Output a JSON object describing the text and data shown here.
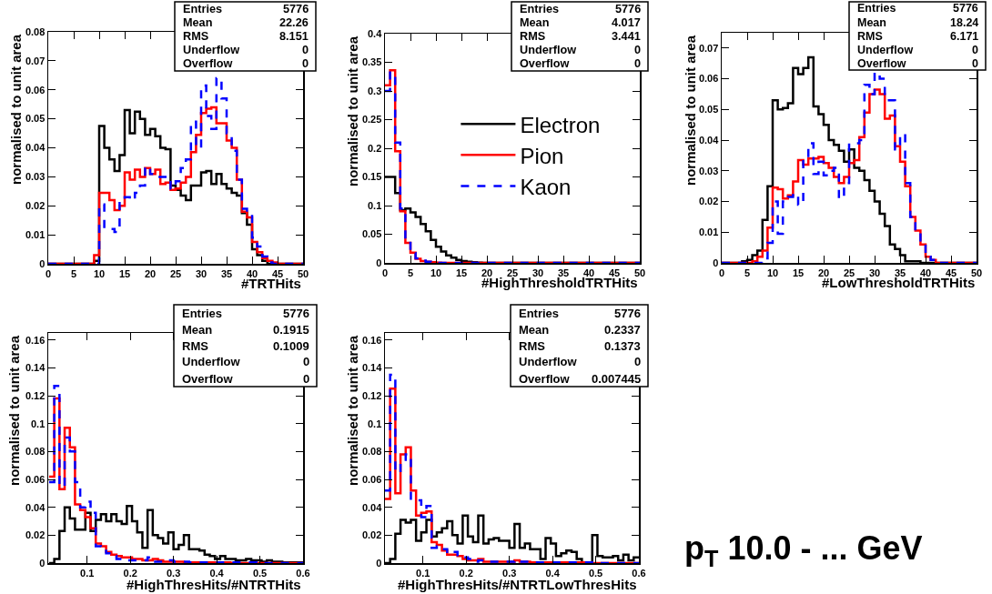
{
  "chart_data": [
    {
      "type": "histogram",
      "xlabel": "#TRTHits",
      "ylabel": "normalised to unit area",
      "xlim": [
        0,
        50
      ],
      "ylim": [
        0,
        0.08
      ],
      "xticks": [
        0,
        5,
        10,
        15,
        20,
        25,
        30,
        35,
        40,
        45,
        50
      ],
      "yticks": [
        0,
        0.01,
        0.02,
        0.03,
        0.04,
        0.05,
        0.06,
        0.07,
        0.08
      ],
      "annotations": [
        "Entries 5776",
        "Mean 22.26",
        "RMS 8.151",
        "Underflow 0",
        "Overflow 0"
      ],
      "bins": [
        0,
        1,
        2,
        3,
        4,
        5,
        6,
        7,
        8,
        9,
        10,
        11,
        12,
        13,
        14,
        15,
        16,
        17,
        18,
        19,
        20,
        21,
        22,
        23,
        24,
        25,
        26,
        27,
        28,
        29,
        30,
        31,
        32,
        33,
        34,
        35,
        36,
        37,
        38,
        39,
        40,
        41,
        42,
        43,
        44,
        45,
        46,
        47,
        48,
        49,
        50
      ],
      "series": [
        {
          "color": "#000000",
          "values": [
            0,
            0,
            0,
            0,
            0,
            0,
            0,
            0,
            0,
            0.001,
            0.0475,
            0.04,
            0.036,
            0.032,
            0.0375,
            0.053,
            0.045,
            0.0525,
            0.05,
            0.0445,
            0.0465,
            0.044,
            0.04,
            0.0395,
            0.027,
            0.0255,
            0.0235,
            0.022,
            0.027,
            0.027,
            0.0315,
            0.032,
            0.0275,
            0.031,
            0.0275,
            0.026,
            0.0245,
            0.0235,
            0.0175,
            0.0135,
            0.005,
            0.003,
            0.001,
            0,
            0,
            0,
            0,
            0,
            0,
            0
          ]
        },
        {
          "color": "#ff0000",
          "values": [
            0,
            0,
            0,
            0,
            0,
            0,
            0,
            0,
            0,
            0.003,
            0.0245,
            0.0245,
            0.022,
            0.0185,
            0.02,
            0.0315,
            0.029,
            0.0325,
            0.03,
            0.033,
            0.031,
            0.0325,
            0.0275,
            0.028,
            0.0255,
            0.026,
            0.028,
            0.03,
            0.0385,
            0.0445,
            0.052,
            0.0535,
            0.054,
            0.0485,
            0.0485,
            0.0425,
            0.04,
            0.029,
            0.018,
            0.016,
            0.0075,
            0.004,
            0.002,
            0.001,
            0.0005,
            0,
            0,
            0,
            0,
            0
          ]
        },
        {
          "color": "#0000ff",
          "line_style": "dashed",
          "values": [
            0,
            0,
            0,
            0,
            0,
            0,
            0,
            0,
            0,
            0,
            0.0205,
            0.012,
            0.012,
            0.011,
            0.0215,
            0.023,
            0.022,
            0.0245,
            0.027,
            0.0335,
            0.031,
            0.03,
            0.03,
            0.0295,
            0.026,
            0.0285,
            0.033,
            0.036,
            0.049,
            0.04,
            0.0615,
            0.051,
            0.0465,
            0.064,
            0.057,
            0.045,
            0.039,
            0.029,
            0.019,
            0.017,
            0.009,
            0.006,
            0.0025,
            0.0005,
            0,
            0,
            0,
            0,
            0,
            0
          ]
        }
      ]
    },
    {
      "type": "histogram",
      "xlabel": "#HighThresholdTRTHits",
      "ylabel": "normalised to unit area",
      "xlim": [
        0,
        50
      ],
      "ylim": [
        0,
        0.4
      ],
      "xticks": [
        0,
        5,
        10,
        15,
        20,
        25,
        30,
        35,
        40,
        45,
        50
      ],
      "yticks": [
        0,
        0.05,
        0.1,
        0.15,
        0.2,
        0.25,
        0.3,
        0.35,
        0.4
      ],
      "legend": "right",
      "annotations": [
        "Entries 5776",
        "Mean 4.017",
        "RMS 3.441",
        "Underflow 0",
        "Overflow 0"
      ],
      "bins": [
        0,
        1,
        2,
        3,
        4,
        5,
        6,
        7,
        8,
        9,
        10,
        11,
        12,
        13,
        14,
        15,
        16,
        17,
        18,
        19,
        20,
        21,
        22,
        23,
        24,
        25,
        26,
        27,
        28,
        29,
        30,
        31,
        32,
        33,
        34,
        35,
        36,
        37,
        38,
        39,
        40,
        41,
        42,
        43,
        44,
        45,
        46,
        47,
        48,
        49,
        50
      ],
      "series": [
        {
          "name": "Electron",
          "color": "#000000",
          "values": [
            0.15,
            0.15,
            0.122,
            0.092,
            0.095,
            0.088,
            0.08,
            0.068,
            0.055,
            0.04,
            0.028,
            0.02,
            0.013,
            0.009,
            0.005,
            0.003,
            0.002,
            0.001,
            0.0005,
            0,
            0,
            0,
            0,
            0,
            0,
            0,
            0,
            0,
            0,
            0,
            0,
            0,
            0,
            0,
            0,
            0,
            0,
            0,
            0,
            0,
            0,
            0,
            0,
            0,
            0,
            0,
            0,
            0,
            0,
            0
          ]
        },
        {
          "name": "Pion",
          "color": "#ff0000",
          "values": [
            0.31,
            0.336,
            0.195,
            0.09,
            0.035,
            0.018,
            0.007,
            0.003,
            0.002,
            0.001,
            0.0005,
            0,
            0,
            0,
            0,
            0,
            0,
            0,
            0,
            0,
            0,
            0,
            0,
            0,
            0,
            0,
            0,
            0,
            0,
            0,
            0,
            0,
            0,
            0,
            0,
            0,
            0,
            0,
            0,
            0,
            0,
            0,
            0,
            0,
            0,
            0,
            0,
            0,
            0,
            0
          ]
        },
        {
          "name": "Kaon",
          "color": "#0000ff",
          "line_style": "dashed",
          "values": [
            0.3,
            0.332,
            0.21,
            0.095,
            0.035,
            0.017,
            0.008,
            0.004,
            0.002,
            0.001,
            0,
            0,
            0,
            0,
            0,
            0,
            0,
            0,
            0,
            0,
            0,
            0,
            0,
            0,
            0,
            0,
            0,
            0,
            0,
            0,
            0,
            0,
            0,
            0,
            0,
            0,
            0,
            0,
            0,
            0,
            0,
            0,
            0,
            0,
            0,
            0,
            0,
            0,
            0,
            0
          ]
        }
      ]
    },
    {
      "type": "histogram",
      "xlabel": "#LowThresholdTRTHits",
      "ylabel": "normalised to unit area",
      "xlim": [
        0,
        50
      ],
      "ylim": [
        0,
        0.075
      ],
      "xticks": [
        0,
        5,
        10,
        15,
        20,
        25,
        30,
        35,
        40,
        45,
        50
      ],
      "yticks": [
        0,
        0.01,
        0.02,
        0.03,
        0.04,
        0.05,
        0.06,
        0.07
      ],
      "annotations": [
        "Entries 5776",
        "Mean 18.24",
        "RMS 6.171",
        "Underflow 0",
        "Overflow 0"
      ],
      "bins": [
        0,
        1,
        2,
        3,
        4,
        5,
        6,
        7,
        8,
        9,
        10,
        11,
        12,
        13,
        14,
        15,
        16,
        17,
        18,
        19,
        20,
        21,
        22,
        23,
        24,
        25,
        26,
        27,
        28,
        29,
        30,
        31,
        32,
        33,
        34,
        35,
        36,
        37,
        38,
        39,
        40,
        41,
        42,
        43,
        44,
        45,
        46,
        47,
        48,
        49,
        50
      ],
      "series": [
        {
          "color": "#000000",
          "values": [
            0,
            0,
            0,
            0,
            0.0005,
            0.001,
            0.0025,
            0.004,
            0.014,
            0.025,
            0.053,
            0.05,
            0.0505,
            0.052,
            0.0635,
            0.0615,
            0.0635,
            0.067,
            0.051,
            0.0485,
            0.045,
            0.04,
            0.0385,
            0.0365,
            0.033,
            0.037,
            0.031,
            0.03,
            0.027,
            0.0235,
            0.02,
            0.016,
            0.012,
            0.006,
            0.0045,
            0.0025,
            0.0005,
            0.0005,
            0.0005,
            0,
            0,
            0,
            0,
            0,
            0,
            0,
            0,
            0,
            0,
            0
          ]
        },
        {
          "color": "#ff0000",
          "values": [
            0,
            0,
            0,
            0,
            0,
            0,
            0.0005,
            0.002,
            0.004,
            0.0115,
            0.0245,
            0.024,
            0.021,
            0.022,
            0.0265,
            0.0335,
            0.032,
            0.034,
            0.034,
            0.0345,
            0.0325,
            0.031,
            0.028,
            0.026,
            0.028,
            0.0325,
            0.0335,
            0.041,
            0.049,
            0.055,
            0.0565,
            0.055,
            0.047,
            0.048,
            0.038,
            0.033,
            0.025,
            0.015,
            0.0105,
            0.006,
            0.002,
            0.001,
            0,
            0,
            0,
            0,
            0,
            0,
            0,
            0
          ]
        },
        {
          "color": "#0000ff",
          "line_style": "dashed",
          "values": [
            0,
            0,
            0,
            0,
            0,
            0,
            0,
            0,
            0.0015,
            0.0065,
            0.02,
            0.0095,
            0.02,
            0.0215,
            0.0225,
            0.019,
            0.034,
            0.039,
            0.029,
            0.033,
            0.0285,
            0.03,
            0.031,
            0.021,
            0.026,
            0.039,
            0.039,
            0.04,
            0.058,
            0.055,
            0.062,
            0.06,
            0.053,
            0.053,
            0.037,
            0.042,
            0.026,
            0.015,
            0.01,
            0.0065,
            0.002,
            0.001,
            0,
            0,
            0,
            0,
            0,
            0,
            0,
            0
          ]
        }
      ]
    },
    {
      "type": "histogram",
      "xlabel": "#HighThresHits/#NTRTHits",
      "ylabel": "normalised to unit area",
      "xlim": [
        0.01,
        0.6
      ],
      "ylim": [
        0,
        0.165
      ],
      "xticks": [
        0.1,
        0.2,
        0.3,
        0.4,
        0.5,
        0.6
      ],
      "yticks": [
        0,
        0.02,
        0.04,
        0.06,
        0.08,
        0.1,
        0.12,
        0.14,
        0.16
      ],
      "annotations": [
        "Entries 5776",
        "Mean 0.1915",
        "RMS 0.1009",
        "Underflow 0",
        "Overflow 0"
      ],
      "bins": [
        0.012,
        0.024,
        0.036,
        0.048,
        0.06,
        0.072,
        0.084,
        0.096,
        0.108,
        0.12,
        0.132,
        0.144,
        0.156,
        0.168,
        0.18,
        0.192,
        0.204,
        0.216,
        0.228,
        0.24,
        0.252,
        0.264,
        0.276,
        0.288,
        0.3,
        0.312,
        0.324,
        0.336,
        0.348,
        0.36,
        0.372,
        0.384,
        0.396,
        0.408,
        0.42,
        0.432,
        0.444,
        0.456,
        0.468,
        0.48,
        0.492,
        0.504,
        0.516,
        0.528,
        0.54,
        0.552,
        0.564,
        0.576,
        0.588,
        0.6
      ],
      "series": [
        {
          "color": "#000000",
          "values": [
            0,
            0.003,
            0.023,
            0.04,
            0.032,
            0.024,
            0.024,
            0.036,
            0.023,
            0.031,
            0.035,
            0.03,
            0.035,
            0.03,
            0.028,
            0.041,
            0.03,
            0.022,
            0.011,
            0.038,
            0.02,
            0.018,
            0.014,
            0.022,
            0.01,
            0.013,
            0.02,
            0.01,
            0.01,
            0.009,
            0.006,
            0.005,
            0.003,
            0.005,
            0.003,
            0.003,
            0.002,
            0.002,
            0.003,
            0.002,
            0.002,
            0.001,
            0.002,
            0.001,
            0.001,
            0.0005,
            0.0005,
            0.0005,
            0.0005
          ]
        },
        {
          "color": "#ff0000",
          "values": [
            0.062,
            0.118,
            0.053,
            0.097,
            0.083,
            0.042,
            0.038,
            0.033,
            0.025,
            0.014,
            0.012,
            0.008,
            0.006,
            0.005,
            0.004,
            0.004,
            0.003,
            0.003,
            0.002,
            0.002,
            0.003,
            0.002,
            0.001,
            0.001,
            0.001,
            0.001,
            0.0005,
            0.0005,
            0.0005,
            0.0005,
            0.0005,
            0.0005,
            0.0005,
            0.0005,
            0.0005,
            0,
            0,
            0,
            0,
            0,
            0,
            0,
            0,
            0,
            0,
            0,
            0,
            0,
            0
          ]
        },
        {
          "color": "#0000ff",
          "line_style": "dashed",
          "values": [
            0.058,
            0.127,
            0.055,
            0.09,
            0.08,
            0.058,
            0.04,
            0.044,
            0.036,
            0.012,
            0.01,
            0.007,
            0.005,
            0.003,
            0.003,
            0.002,
            0.002,
            0.002,
            0.002,
            0.004,
            0.001,
            0.001,
            0.001,
            0.002,
            0.001,
            0.001,
            0.001,
            0.0005,
            0.0005,
            0.0005,
            0.0005,
            0.0005,
            0.0005,
            0.0005,
            0.0005,
            0.0005,
            0.0005,
            0.0005,
            0.0005,
            0.0005,
            0,
            0,
            0,
            0,
            0,
            0,
            0,
            0,
            0
          ]
        }
      ]
    },
    {
      "type": "histogram",
      "xlabel": "#HighThresHits/#NTRTLowThresHits",
      "ylabel": "normalised to unit area",
      "xlim": [
        0.012,
        0.6
      ],
      "ylim": [
        0,
        0.165
      ],
      "xticks": [
        0.1,
        0.2,
        0.3,
        0.4,
        0.5,
        0.6
      ],
      "yticks": [
        0,
        0.02,
        0.04,
        0.06,
        0.08,
        0.1,
        0.12,
        0.14,
        0.16
      ],
      "annotations": [
        "Entries 5776",
        "Mean 0.2337",
        "RMS 0.1373",
        "Underflow 0",
        "Overflow 0.007445"
      ],
      "bins": [
        0.012,
        0.024,
        0.036,
        0.048,
        0.06,
        0.072,
        0.084,
        0.096,
        0.108,
        0.12,
        0.132,
        0.144,
        0.156,
        0.168,
        0.18,
        0.192,
        0.204,
        0.216,
        0.228,
        0.24,
        0.252,
        0.264,
        0.276,
        0.288,
        0.3,
        0.312,
        0.324,
        0.336,
        0.348,
        0.36,
        0.372,
        0.384,
        0.396,
        0.408,
        0.42,
        0.432,
        0.444,
        0.456,
        0.468,
        0.48,
        0.492,
        0.504,
        0.516,
        0.528,
        0.54,
        0.552,
        0.564,
        0.576,
        0.588,
        0.6
      ],
      "series": [
        {
          "color": "#000000",
          "values": [
            0,
            0.003,
            0.021,
            0.031,
            0.029,
            0.031,
            0.016,
            0.022,
            0.031,
            0.019,
            0.022,
            0.025,
            0.03,
            0.02,
            0.014,
            0.034,
            0.019,
            0.015,
            0.034,
            0.014,
            0.017,
            0.018,
            0.016,
            0.016,
            0.011,
            0.028,
            0.011,
            0.014,
            0.01,
            0.01,
            0.003,
            0.018,
            0.014,
            0.005,
            0.007,
            0.009,
            0.008,
            0.003,
            0,
            0,
            0.02,
            0.005,
            0.004,
            0.004,
            0.005,
            0.002,
            0.006,
            0.002,
            0.004
          ]
        },
        {
          "color": "#ff0000",
          "values": [
            0.046,
            0.125,
            0.05,
            0.078,
            0.083,
            0.052,
            0.034,
            0.036,
            0.037,
            0.015,
            0.013,
            0.009,
            0.006,
            0.006,
            0.005,
            0.003,
            0.002,
            0.002,
            0.003,
            0.001,
            0.001,
            0.001,
            0.001,
            0.001,
            0.001,
            0.002,
            0.001,
            0.001,
            0.0005,
            0.0005,
            0.0005,
            0.0005,
            0.0005,
            0.0005,
            0.0005,
            0.0005,
            0.0005,
            0.0005,
            0.0005,
            0.0005,
            0,
            0,
            0,
            0,
            0,
            0,
            0,
            0,
            0
          ]
        },
        {
          "color": "#0000ff",
          "line_style": "dashed",
          "values": [
            0.052,
            0.135,
            0.065,
            0.074,
            0.078,
            0.045,
            0.045,
            0.033,
            0.041,
            0.011,
            0.012,
            0.01,
            0.007,
            0.008,
            0.004,
            0.004,
            0.003,
            0.001,
            0.002,
            0.002,
            0.001,
            0.001,
            0.001,
            0.001,
            0.001,
            0.002,
            0.001,
            0.001,
            0.0005,
            0.0005,
            0.0005,
            0.0005,
            0.0005,
            0.0005,
            0.0005,
            0.0005,
            0.0005,
            0.0005,
            0.0005,
            0.0005,
            0,
            0,
            0,
            0,
            0,
            0,
            0,
            0,
            0
          ]
        }
      ]
    },
    {
      "type": "other",
      "annotations": [
        "p$_{T}$ 10.0 - ... GeV"
      ]
    }
  ]
}
